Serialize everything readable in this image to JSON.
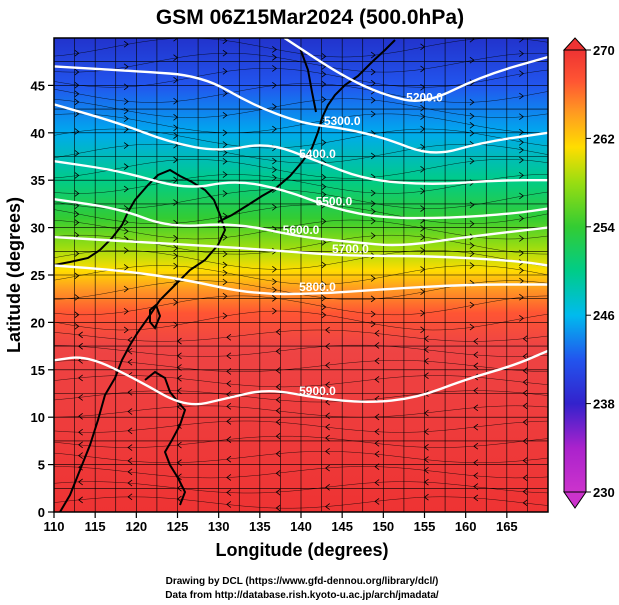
{
  "chart_data": {
    "type": "heatmap",
    "title": "GSM 06Z15Mar2024 (500.0hPa)",
    "xlabel": "Longitude (degrees)",
    "ylabel": "Latitude  (degrees)",
    "xlim": [
      110,
      170
    ],
    "ylim": [
      0,
      50
    ],
    "xticks": [
      "110",
      "115",
      "120",
      "125",
      "130",
      "135",
      "140",
      "145",
      "150",
      "155",
      "160",
      "165"
    ],
    "yticks": [
      "0",
      "5",
      "10",
      "15",
      "20",
      "25",
      "30",
      "35",
      "40",
      "45"
    ],
    "colorbar": {
      "ticks": [
        "230",
        "238",
        "246",
        "254",
        "262",
        "270"
      ],
      "range": [
        230,
        270
      ],
      "colors": [
        "#cc33cc",
        "#3322cc",
        "#2255ee",
        "#00bbee",
        "#00cc88",
        "#33cc33",
        "#99dd11",
        "#ffdd00",
        "#ff9922",
        "#ff5533",
        "#ee3333"
      ]
    },
    "contours": [
      {
        "label": "5200.0",
        "points": [
          [
            138,
            50
          ],
          [
            145,
            46
          ],
          [
            150,
            44
          ],
          [
            155,
            43
          ],
          [
            162,
            46
          ],
          [
            170,
            48
          ]
        ]
      },
      {
        "label": "5300.0",
        "points": [
          [
            110,
            47
          ],
          [
            120,
            46.5
          ],
          [
            128,
            46
          ],
          [
            134,
            43
          ],
          [
            140,
            41
          ],
          [
            145,
            40.5
          ],
          [
            150,
            39.5
          ],
          [
            156,
            37.5
          ],
          [
            162,
            39
          ],
          [
            170,
            40
          ]
        ]
      },
      {
        "label": "5400.0",
        "points": [
          [
            110,
            43
          ],
          [
            118,
            41
          ],
          [
            124,
            39
          ],
          [
            130,
            38
          ],
          [
            136,
            39
          ],
          [
            142,
            37
          ],
          [
            148,
            35
          ],
          [
            156,
            34.5
          ],
          [
            164,
            35
          ],
          [
            170,
            35
          ]
        ]
      },
      {
        "label": "5500.0",
        "points": [
          [
            110,
            37
          ],
          [
            118,
            36
          ],
          [
            126,
            34
          ],
          [
            132,
            35
          ],
          [
            138,
            34
          ],
          [
            144,
            32
          ],
          [
            150,
            31
          ],
          [
            158,
            31
          ],
          [
            166,
            31.5
          ],
          [
            170,
            32
          ]
        ]
      },
      {
        "label": "5600.0",
        "points": [
          [
            110,
            33
          ],
          [
            118,
            32
          ],
          [
            124,
            30
          ],
          [
            132,
            30.5
          ],
          [
            140,
            29
          ],
          [
            146,
            28.5
          ],
          [
            152,
            28
          ],
          [
            160,
            29
          ],
          [
            170,
            30
          ]
        ]
      },
      {
        "label": "5700.0",
        "points": [
          [
            110,
            29
          ],
          [
            120,
            28.5
          ],
          [
            130,
            28
          ],
          [
            138,
            27.5
          ],
          [
            146,
            27
          ],
          [
            156,
            27
          ],
          [
            166,
            26.5
          ],
          [
            170,
            26
          ]
        ]
      },
      {
        "label": "5800.0",
        "points": [
          [
            110,
            26
          ],
          [
            118,
            25.5
          ],
          [
            126,
            24.5
          ],
          [
            134,
            23
          ],
          [
            142,
            23
          ],
          [
            150,
            23.5
          ],
          [
            160,
            24
          ],
          [
            170,
            24
          ]
        ]
      },
      {
        "label": "5900.0",
        "points": [
          [
            110,
            16
          ],
          [
            114,
            16.5
          ],
          [
            120,
            14
          ],
          [
            126,
            11
          ],
          [
            131,
            12
          ],
          [
            136,
            13
          ],
          [
            142,
            12
          ],
          [
            148,
            11.5
          ],
          [
            154,
            12
          ],
          [
            160,
            14
          ],
          [
            166,
            15.5
          ],
          [
            170,
            17
          ]
        ]
      }
    ],
    "wind_field": "easterly to westerly streamlines; westerlies north of 20N, anticyclone near 123E 37N",
    "grid": true
  },
  "credits": {
    "line1": "Drawing by DCL (https://www.gfd-dennou.org/library/dcl/)",
    "line2": "Data from http://database.rish.kyoto-u.ac.jp/arch/jmadata/"
  }
}
